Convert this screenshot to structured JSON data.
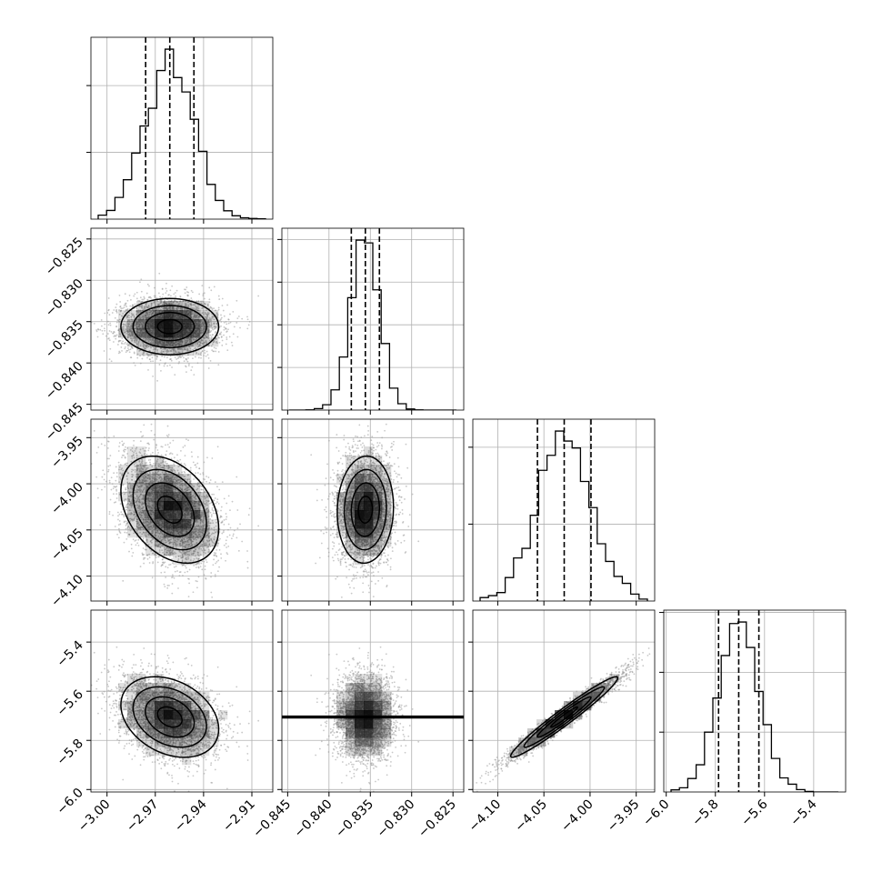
{
  "chart_data": {
    "type": "corner",
    "title": "",
    "grid": true,
    "n_params": 4,
    "params": [
      {
        "index": 0,
        "label": "",
        "range": [
          -3.01,
          -2.897
        ],
        "ticks": [
          -3.0,
          -2.97,
          -2.94,
          -2.91
        ],
        "tick_labels": [
          "−3.00",
          "−2.97",
          "−2.94",
          "−2.91"
        ],
        "quantiles": [
          -2.976,
          -2.961,
          -2.946
        ],
        "median": -2.961,
        "sigma": 0.0152
      },
      {
        "index": 1,
        "label": "",
        "range": [
          -0.8457,
          -0.8237
        ],
        "ticks": [
          -0.845,
          -0.84,
          -0.835,
          -0.83,
          -0.825
        ],
        "tick_labels": [
          "−0.845",
          "−0.840",
          "−0.835",
          "−0.830",
          "−0.825"
        ],
        "quantiles": [
          -0.8373,
          -0.8356,
          -0.8339
        ],
        "median": -0.8356,
        "sigma": 0.0017
      },
      {
        "index": 2,
        "label": "",
        "range": [
          -4.127,
          -3.93
        ],
        "ticks": [
          -4.1,
          -4.05,
          -4.0,
          -3.95
        ],
        "tick_labels": [
          "−4.10",
          "−4.05",
          "−4.00",
          "−3.95"
        ],
        "quantiles": [
          -4.057,
          -4.028,
          -3.999
        ],
        "median": -4.028,
        "sigma": 0.029
      },
      {
        "index": 3,
        "label": "",
        "range": [
          -6.01,
          -5.27
        ],
        "ticks": [
          -6.0,
          -5.8,
          -5.6,
          -5.4
        ],
        "tick_labels": [
          "−6.0",
          "−5.8",
          "−5.6",
          "−5.4"
        ],
        "y_tick_labels": [
          "−6.0",
          "−5.8",
          "−5.6",
          "−5.4"
        ],
        "quantiles": [
          -5.787,
          -5.705,
          -5.623
        ],
        "median": -5.705,
        "sigma": 0.082
      }
    ],
    "row_tick_labels": {
      "1": [
        "−0.845",
        "−0.840",
        "−0.835",
        "−0.830",
        "−0.825"
      ],
      "2": [
        "−4.10",
        "−4.05",
        "−4.00",
        "−3.95"
      ],
      "3": [
        "−6.0",
        "−5.8",
        "−5.6",
        "−5.4"
      ]
    },
    "correlations": {
      "0-1": 0.0,
      "0-2": -0.35,
      "0-3": -0.3,
      "1-2": 0.05,
      "1-3": 0.0,
      "2-3": 0.97
    },
    "histogram_bins": 20,
    "contour_levels_sigma": [
      0.5,
      1.0,
      1.5,
      2.0
    ],
    "quantile_line_style": "dashed",
    "colors": {
      "hist": "#000000",
      "points": "#9a9a9a",
      "grid": "#b0b0b0",
      "density": "#000000"
    }
  }
}
